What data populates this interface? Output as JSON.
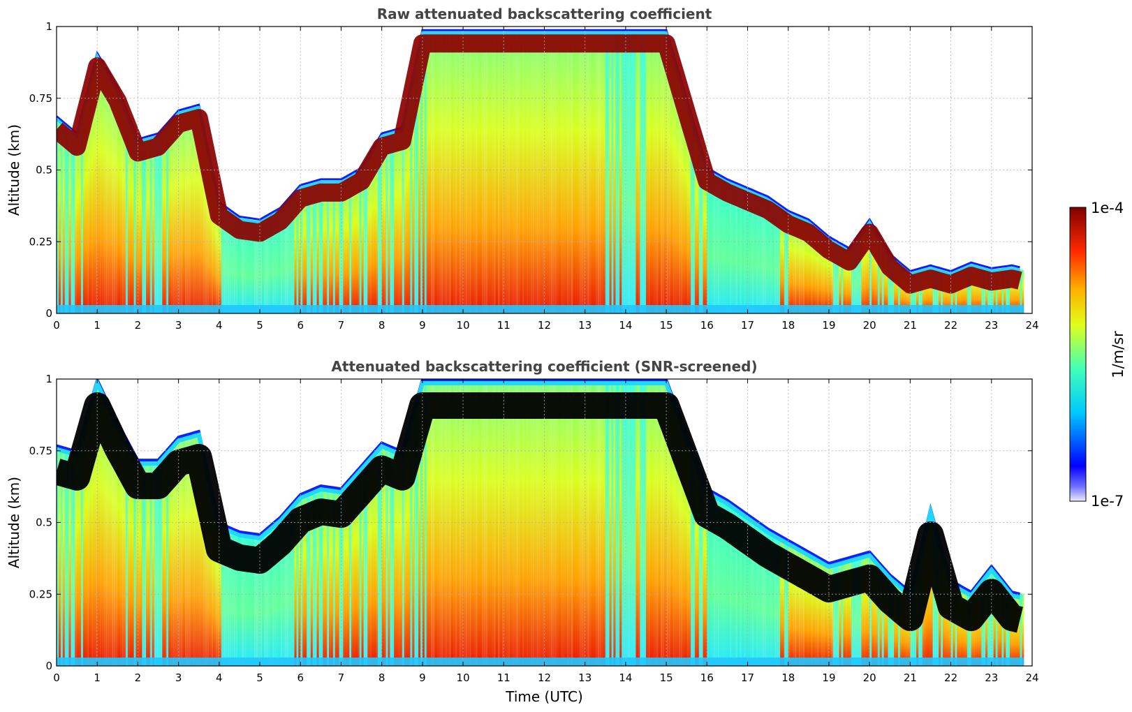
{
  "chart_data": [
    {
      "type": "heatmap",
      "title": "Raw attenuated backscattering coefficient",
      "xlabel": "",
      "ylabel": "Altitude (km)",
      "xlim": [
        0,
        24
      ],
      "ylim": [
        0,
        1
      ],
      "xticks": [
        0,
        1,
        2,
        3,
        4,
        5,
        6,
        7,
        8,
        9,
        10,
        11,
        12,
        13,
        14,
        15,
        16,
        17,
        18,
        19,
        20,
        21,
        22,
        23,
        24
      ],
      "yticks": [
        "0",
        "0.25",
        "0.5",
        "0.75",
        "1"
      ],
      "grid": true,
      "cloud_layer_altitude_km": {
        "time_utc": [
          0,
          0.5,
          1,
          1.5,
          2,
          2.5,
          3,
          3.5,
          4,
          4.5,
          5,
          5.5,
          6,
          6.5,
          7,
          7.5,
          8,
          8.5,
          9,
          9.5,
          10,
          11,
          12,
          13,
          14,
          15,
          16,
          16.5,
          17,
          17.5,
          18,
          18.5,
          19,
          19.5,
          20,
          20.5,
          21,
          21.5,
          22,
          22.5,
          23,
          23.5,
          23.8
        ],
        "altitude_km": [
          0.68,
          0.62,
          0.9,
          0.78,
          0.6,
          0.62,
          0.7,
          0.72,
          0.38,
          0.33,
          0.32,
          0.36,
          0.44,
          0.46,
          0.46,
          0.5,
          0.62,
          0.64,
          0.98,
          0.98,
          0.98,
          0.98,
          0.98,
          0.98,
          0.98,
          0.98,
          0.5,
          0.46,
          0.43,
          0.4,
          0.35,
          0.32,
          0.26,
          0.22,
          0.32,
          0.2,
          0.14,
          0.16,
          0.14,
          0.17,
          0.15,
          0.16,
          0.15
        ]
      },
      "colorbar": {
        "min_label": "1e-7",
        "max_label": "1e-4",
        "label": "1/m/sr",
        "scale": "log",
        "colormap": "jet"
      }
    },
    {
      "type": "heatmap",
      "title": "Attenuated backscattering coefficient (SNR-screened)",
      "xlabel": "Time (UTC)",
      "ylabel": "Altitude (km)",
      "xlim": [
        0,
        24
      ],
      "ylim": [
        0,
        1
      ],
      "xticks": [
        0,
        1,
        2,
        3,
        4,
        5,
        6,
        7,
        8,
        9,
        10,
        11,
        12,
        13,
        14,
        15,
        16,
        17,
        18,
        19,
        20,
        21,
        22,
        23,
        24
      ],
      "yticks": [
        "0",
        "0.25",
        "0.5",
        "0.75",
        "1"
      ],
      "grid": true,
      "screened_top_altitude_km": {
        "time_utc": [
          0,
          0.5,
          1,
          1.5,
          2,
          2.5,
          3,
          3.5,
          4,
          4.5,
          5,
          5.5,
          6,
          6.5,
          7,
          7.5,
          8,
          8.5,
          9,
          9.5,
          10,
          11,
          12,
          13,
          14,
          15,
          16,
          16.5,
          17,
          17.5,
          18,
          18.5,
          19,
          19.5,
          20,
          20.5,
          21,
          21.5,
          22,
          22.5,
          23,
          23.5,
          23.8
        ],
        "altitude_km": [
          0.77,
          0.75,
          1.0,
          0.85,
          0.72,
          0.72,
          0.8,
          0.82,
          0.5,
          0.47,
          0.46,
          0.52,
          0.6,
          0.63,
          0.62,
          0.7,
          0.78,
          0.75,
          1.0,
          1.0,
          1.0,
          1.0,
          1.0,
          1.0,
          1.0,
          1.0,
          0.62,
          0.58,
          0.53,
          0.48,
          0.44,
          0.4,
          0.36,
          0.38,
          0.4,
          0.32,
          0.26,
          0.55,
          0.3,
          0.26,
          0.35,
          0.26,
          0.25
        ]
      }
    }
  ]
}
